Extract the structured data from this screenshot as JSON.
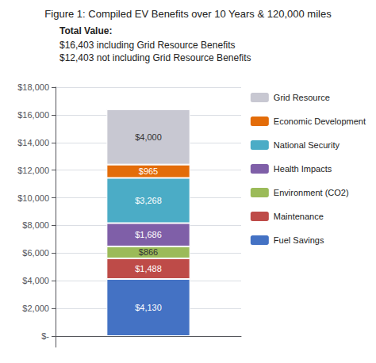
{
  "chart_data": {
    "type": "bar",
    "stacked": true,
    "title": "Figure 1: Compiled EV Benefits over 10 Years & 120,000 miles",
    "subtitle": [
      "Total Value:",
      "$16,403 including Grid Resource Benefits",
      "$12,403 not including Grid Resource Benefits"
    ],
    "categories": [
      null
    ],
    "series": [
      {
        "name": "Fuel Savings",
        "color": "#4472C4",
        "values": [
          4130
        ],
        "value_labels": [
          "$4,130"
        ]
      },
      {
        "name": "Maintenance",
        "color": "#BE4B48",
        "values": [
          1488
        ],
        "value_labels": [
          "$1,488"
        ]
      },
      {
        "name": "Environment (CO2)",
        "color": "#9BBB59",
        "values": [
          866
        ],
        "value_labels": [
          "$866"
        ]
      },
      {
        "name": "Health Impacts",
        "color": "#7F5FA8",
        "values": [
          1686
        ],
        "value_labels": [
          "$1,686"
        ]
      },
      {
        "name": "National Security",
        "color": "#4BACC6",
        "values": [
          3268
        ],
        "value_labels": [
          "$3,268"
        ]
      },
      {
        "name": "Economic Development",
        "color": "#E36C09",
        "values": [
          965
        ],
        "value_labels": [
          "$965"
        ]
      },
      {
        "name": "Grid Resource",
        "color": "#C8C8D2",
        "values": [
          4000
        ],
        "value_labels": [
          "$4,000"
        ]
      }
    ],
    "ylim": [
      -800,
      18000
    ],
    "yticks": [
      {
        "value": 0,
        "label": "$-"
      },
      {
        "value": 2000,
        "label": "$2,000"
      },
      {
        "value": 4000,
        "label": "$4,000"
      },
      {
        "value": 6000,
        "label": "$6,000"
      },
      {
        "value": 8000,
        "label": "$8,000"
      },
      {
        "value": 10000,
        "label": "$10,000"
      },
      {
        "value": 12000,
        "label": "$12,000"
      },
      {
        "value": 14000,
        "label": "$14,000"
      },
      {
        "value": 16000,
        "label": "$16,000"
      },
      {
        "value": 18000,
        "label": "$18,000"
      }
    ],
    "grid": true,
    "legend": "right",
    "data_labels": true,
    "tick_labels": "y"
  }
}
